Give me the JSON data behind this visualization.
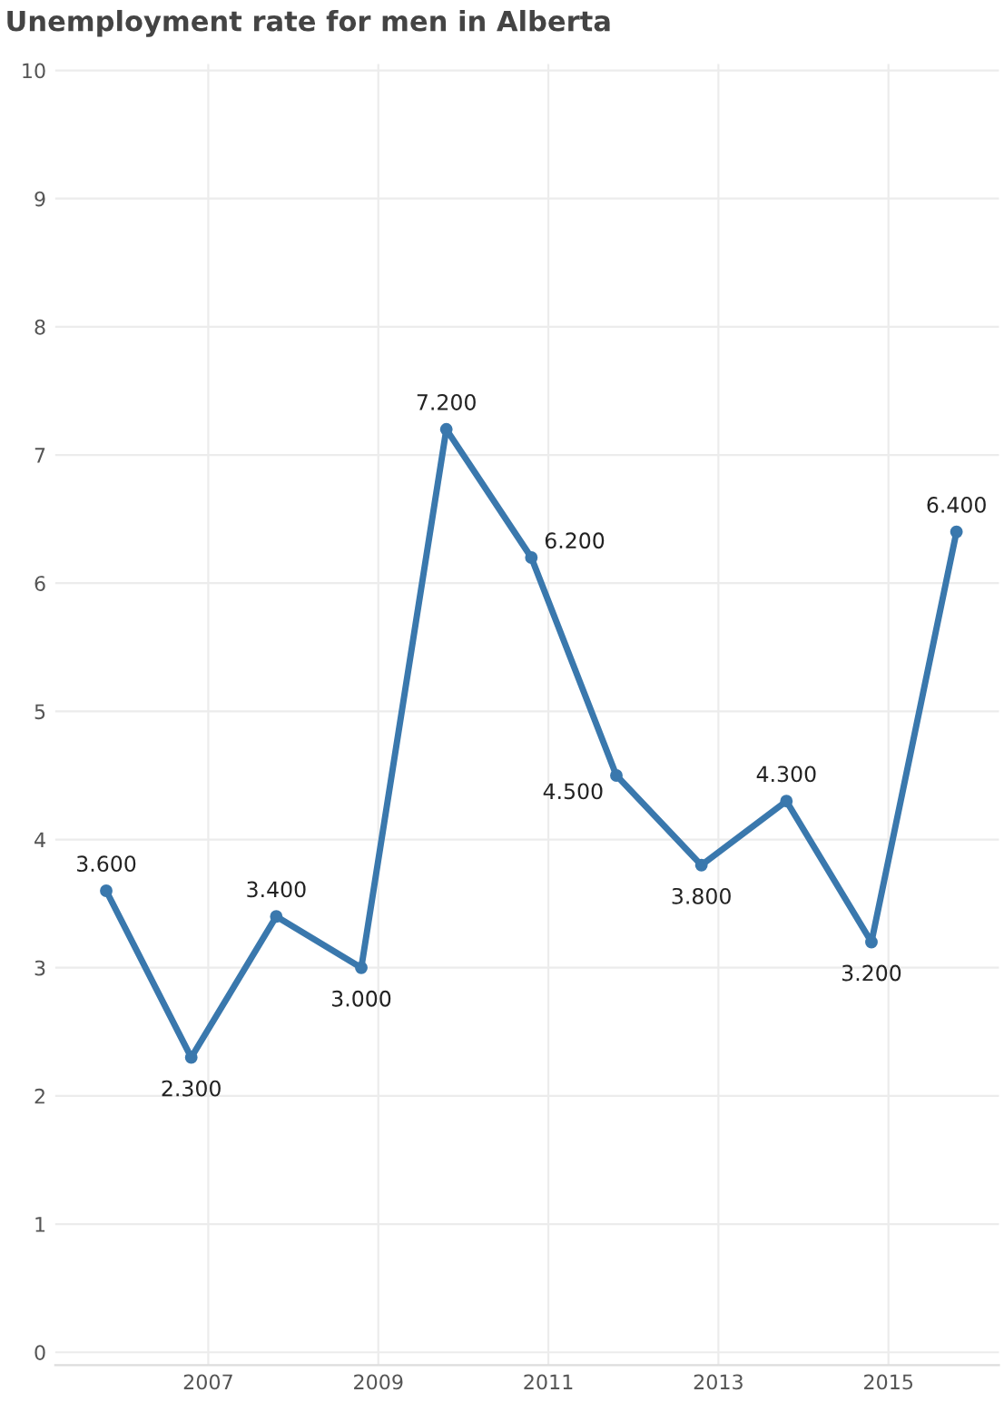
{
  "chart_data": {
    "type": "line",
    "title": "Unemployment rate for men in Alberta",
    "x": [
      2005.8,
      2006.8,
      2007.8,
      2008.8,
      2009.8,
      2010.8,
      2011.8,
      2012.8,
      2013.8,
      2014.8,
      2015.8
    ],
    "series": [
      {
        "color": "#3a78ad",
        "values": [
          3.6,
          2.3,
          3.4,
          3.0,
          7.2,
          6.2,
          4.5,
          3.8,
          4.3,
          3.2,
          6.4
        ],
        "value_labels": [
          "3.600",
          "2.300",
          "3.400",
          "3.000",
          "7.200",
          "6.200",
          "4.500",
          "3.800",
          "4.300",
          "3.200",
          "6.400"
        ]
      }
    ],
    "xlim": [
      2005.2,
      2016.3
    ],
    "xticks": [
      2007,
      2009,
      2011,
      2013,
      2015
    ],
    "ylim": [
      -0.1,
      10.05
    ],
    "yticks": [
      0,
      1,
      2,
      3,
      4,
      5,
      6,
      7,
      8,
      9,
      10
    ],
    "grid": true,
    "marker": "circle",
    "line_style": "solid",
    "legend": false
  }
}
